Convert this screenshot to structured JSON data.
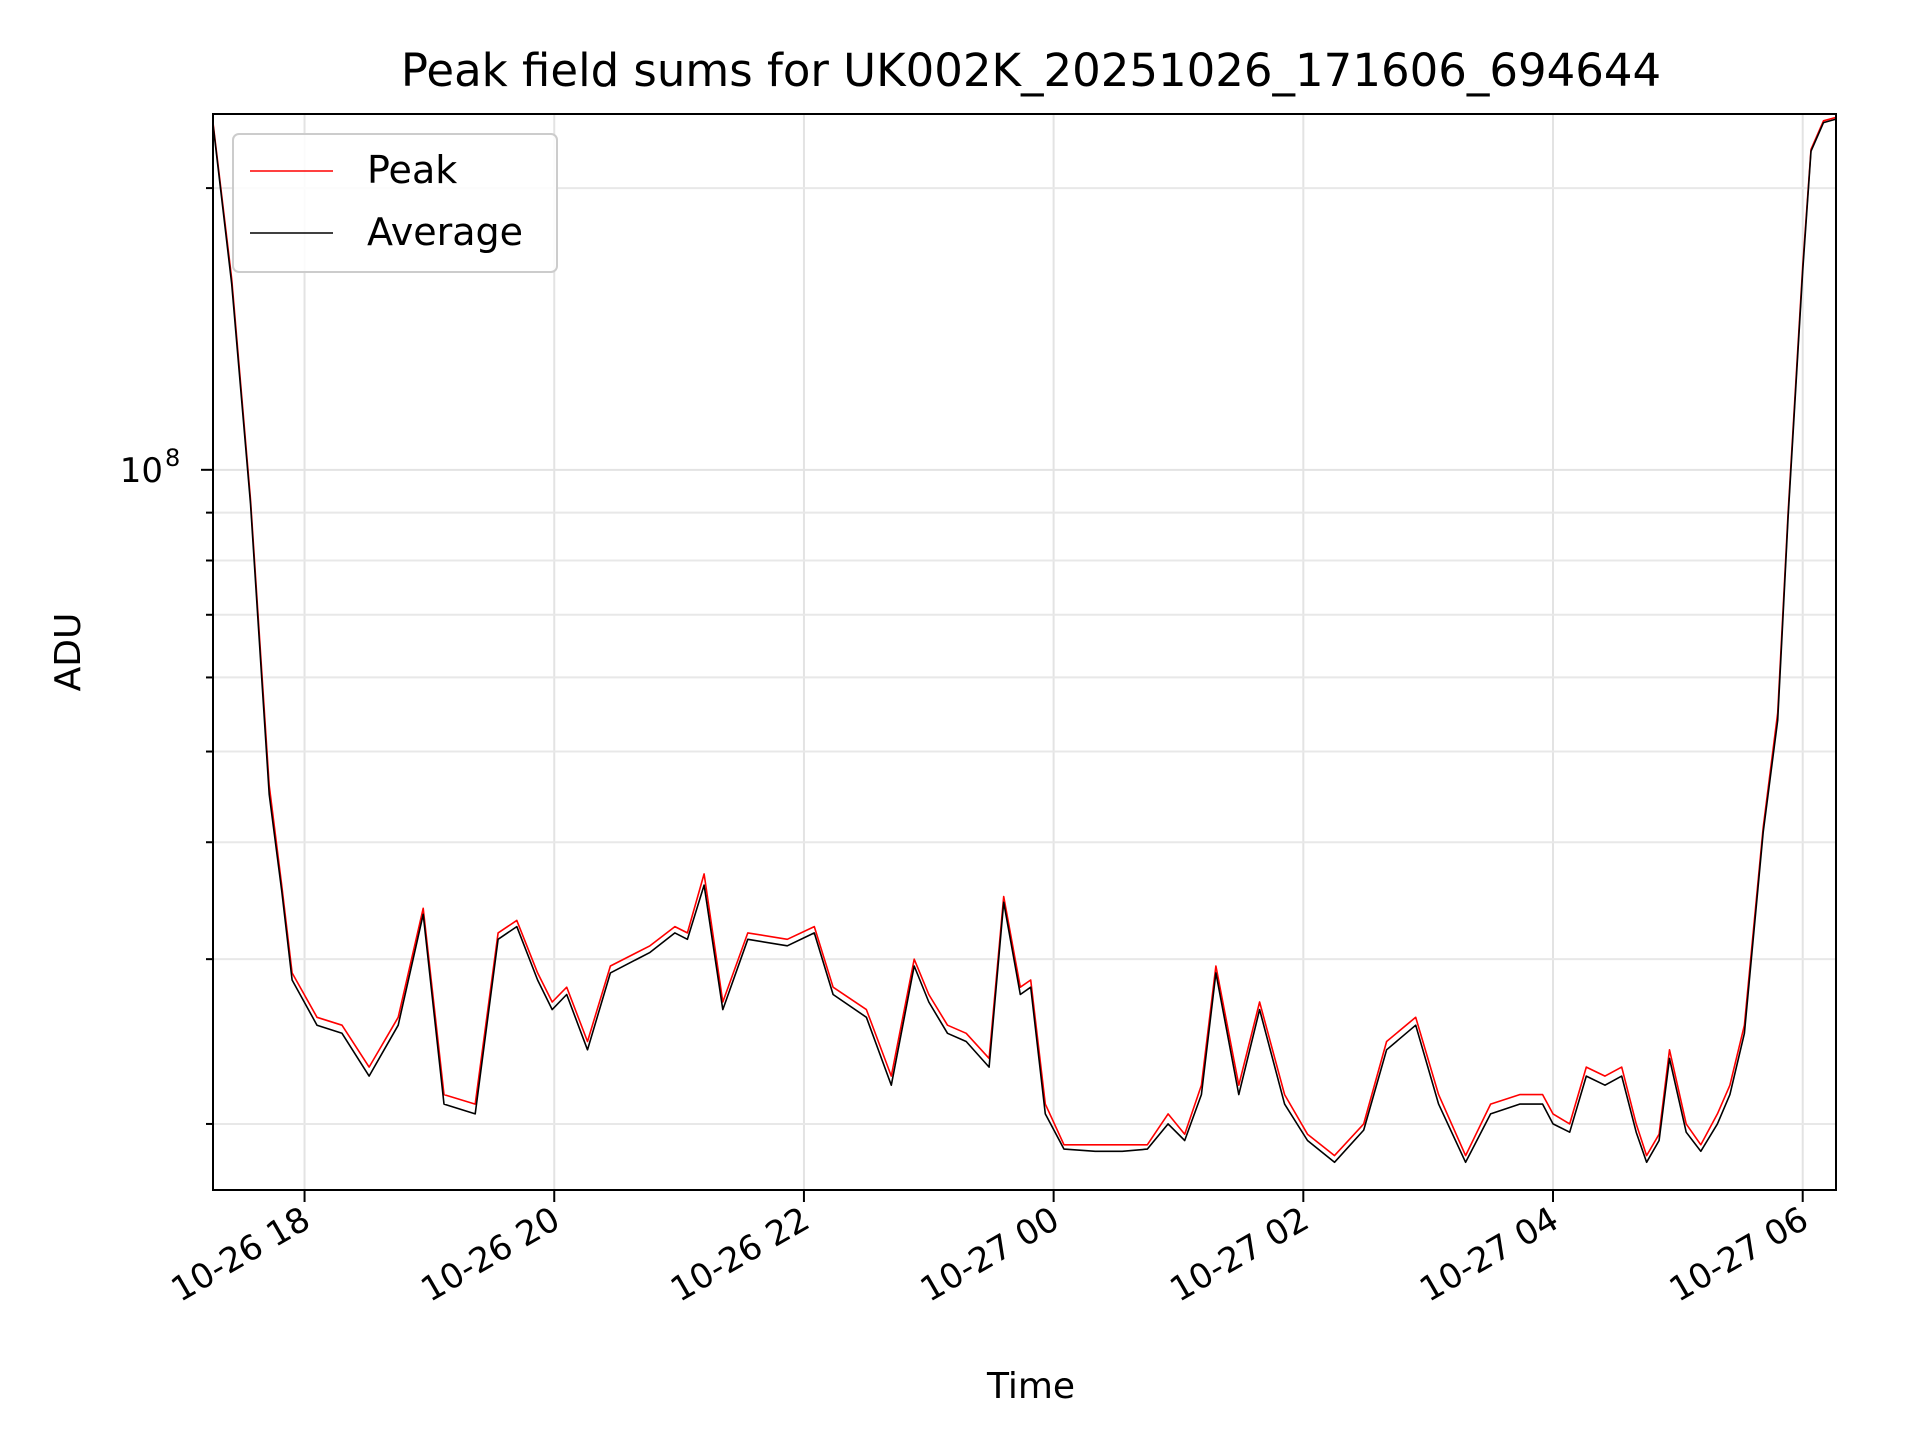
{
  "chart_data": {
    "type": "line",
    "title": "Peak field sums for UK002K_20251026_171606_694644",
    "xlabel": "Time",
    "ylabel": "ADU",
    "x_unit": "datetime",
    "x_range": [
      "2025-10-26 17:16",
      "2025-10-27 06:16"
    ],
    "y_scale": "log",
    "y_range": [
      17000000,
      240000000
    ],
    "x_ticks": [
      {
        "t": "2025-10-26 18:00",
        "label": "10-26 18"
      },
      {
        "t": "2025-10-26 20:00",
        "label": "10-26 20"
      },
      {
        "t": "2025-10-26 22:00",
        "label": "10-26 22"
      },
      {
        "t": "2025-10-27 00:00",
        "label": "10-27 00"
      },
      {
        "t": "2025-10-27 02:00",
        "label": "10-27 02"
      },
      {
        "t": "2025-10-27 04:00",
        "label": "10-27 04"
      },
      {
        "t": "2025-10-27 06:00",
        "label": "10-27 06"
      }
    ],
    "y_major_ticks": [
      {
        "value": 100000000,
        "base": "10",
        "exp": "8"
      }
    ],
    "y_minor_ticks": [
      20000000,
      30000000,
      40000000,
      50000000,
      60000000,
      70000000,
      80000000,
      90000000,
      200000000
    ],
    "grid": true,
    "legend_position": "upper-left",
    "series": [
      {
        "name": "Peak",
        "color": "#ff0000",
        "points": [
          [
            "2025-10-26 17:16",
            235000000
          ],
          [
            "2025-10-26 17:25",
            160000000
          ],
          [
            "2025-10-26 17:34",
            93000000
          ],
          [
            "2025-10-26 17:43",
            46000000
          ],
          [
            "2025-10-26 17:49",
            36000000
          ],
          [
            "2025-10-26 17:54",
            29000000
          ],
          [
            "2025-10-26 18:06",
            26000000
          ],
          [
            "2025-10-26 18:18",
            25500000
          ],
          [
            "2025-10-26 18:31",
            23000000
          ],
          [
            "2025-10-26 18:45",
            26000000
          ],
          [
            "2025-10-26 18:57",
            34000000
          ],
          [
            "2025-10-26 19:07",
            21500000
          ],
          [
            "2025-10-26 19:22",
            21000000
          ],
          [
            "2025-10-26 19:33",
            32000000
          ],
          [
            "2025-10-26 19:42",
            33000000
          ],
          [
            "2025-10-26 19:52",
            29000000
          ],
          [
            "2025-10-26 19:59",
            27000000
          ],
          [
            "2025-10-26 20:06",
            28000000
          ],
          [
            "2025-10-26 20:16",
            24500000
          ],
          [
            "2025-10-26 20:27",
            29500000
          ],
          [
            "2025-10-26 20:46",
            31000000
          ],
          [
            "2025-10-26 20:58",
            32500000
          ],
          [
            "2025-10-26 21:04",
            32000000
          ],
          [
            "2025-10-26 21:12",
            37000000
          ],
          [
            "2025-10-26 21:21",
            27000000
          ],
          [
            "2025-10-26 21:33",
            32000000
          ],
          [
            "2025-10-26 21:52",
            31500000
          ],
          [
            "2025-10-26 22:05",
            32500000
          ],
          [
            "2025-10-26 22:14",
            28000000
          ],
          [
            "2025-10-26 22:30",
            26500000
          ],
          [
            "2025-10-26 22:42",
            22500000
          ],
          [
            "2025-10-26 22:53",
            30000000
          ],
          [
            "2025-10-26 23:00",
            27500000
          ],
          [
            "2025-10-26 23:09",
            25500000
          ],
          [
            "2025-10-26 23:18",
            25000000
          ],
          [
            "2025-10-26 23:29",
            23500000
          ],
          [
            "2025-10-26 23:36",
            35000000
          ],
          [
            "2025-10-26 23:44",
            28000000
          ],
          [
            "2025-10-26 23:49",
            28500000
          ],
          [
            "2025-10-26 23:56",
            21000000
          ],
          [
            "2025-10-27 00:05",
            19000000
          ],
          [
            "2025-10-27 00:20",
            19000000
          ],
          [
            "2025-10-27 00:33",
            19000000
          ],
          [
            "2025-10-27 00:45",
            19000000
          ],
          [
            "2025-10-27 00:55",
            20500000
          ],
          [
            "2025-10-27 01:03",
            19500000
          ],
          [
            "2025-10-27 01:11",
            22000000
          ],
          [
            "2025-10-27 01:18",
            29500000
          ],
          [
            "2025-10-27 01:29",
            22000000
          ],
          [
            "2025-10-27 01:39",
            27000000
          ],
          [
            "2025-10-27 01:51",
            21500000
          ],
          [
            "2025-10-27 02:02",
            19500000
          ],
          [
            "2025-10-27 02:15",
            18500000
          ],
          [
            "2025-10-27 02:29",
            20000000
          ],
          [
            "2025-10-27 02:40",
            24500000
          ],
          [
            "2025-10-27 02:54",
            26000000
          ],
          [
            "2025-10-27 03:05",
            21500000
          ],
          [
            "2025-10-27 03:18",
            18500000
          ],
          [
            "2025-10-27 03:30",
            21000000
          ],
          [
            "2025-10-27 03:44",
            21500000
          ],
          [
            "2025-10-27 03:55",
            21500000
          ],
          [
            "2025-10-27 04:00",
            20500000
          ],
          [
            "2025-10-27 04:08",
            20000000
          ],
          [
            "2025-10-27 04:16",
            23000000
          ],
          [
            "2025-10-27 04:25",
            22500000
          ],
          [
            "2025-10-27 04:33",
            23000000
          ],
          [
            "2025-10-27 04:40",
            20000000
          ],
          [
            "2025-10-27 04:45",
            18500000
          ],
          [
            "2025-10-27 04:51",
            19500000
          ],
          [
            "2025-10-27 04:56",
            24000000
          ],
          [
            "2025-10-27 05:04",
            20000000
          ],
          [
            "2025-10-27 05:11",
            19000000
          ],
          [
            "2025-10-27 05:19",
            20500000
          ],
          [
            "2025-10-27 05:25",
            22000000
          ],
          [
            "2025-10-27 05:32",
            25500000
          ],
          [
            "2025-10-27 05:41",
            41500000
          ],
          [
            "2025-10-27 05:48",
            55000000
          ],
          [
            "2025-10-27 05:53",
            90000000
          ],
          [
            "2025-10-27 06:00",
            165000000
          ],
          [
            "2025-10-27 06:04",
            220000000
          ],
          [
            "2025-10-27 06:10",
            236000000
          ],
          [
            "2025-10-27 06:16",
            238000000
          ]
        ]
      },
      {
        "name": "Average",
        "color": "#000000",
        "points": [
          [
            "2025-10-26 17:16",
            234000000
          ],
          [
            "2025-10-26 17:25",
            158000000
          ],
          [
            "2025-10-26 17:34",
            92000000
          ],
          [
            "2025-10-26 17:43",
            45000000
          ],
          [
            "2025-10-26 17:49",
            35500000
          ],
          [
            "2025-10-26 17:54",
            28500000
          ],
          [
            "2025-10-26 18:06",
            25500000
          ],
          [
            "2025-10-26 18:18",
            25000000
          ],
          [
            "2025-10-26 18:31",
            22500000
          ],
          [
            "2025-10-26 18:45",
            25500000
          ],
          [
            "2025-10-26 18:57",
            33500000
          ],
          [
            "2025-10-26 19:07",
            21000000
          ],
          [
            "2025-10-26 19:22",
            20500000
          ],
          [
            "2025-10-26 19:33",
            31500000
          ],
          [
            "2025-10-26 19:42",
            32500000
          ],
          [
            "2025-10-26 19:52",
            28500000
          ],
          [
            "2025-10-26 19:59",
            26500000
          ],
          [
            "2025-10-26 20:06",
            27500000
          ],
          [
            "2025-10-26 20:16",
            24000000
          ],
          [
            "2025-10-26 20:27",
            29000000
          ],
          [
            "2025-10-26 20:46",
            30500000
          ],
          [
            "2025-10-26 20:58",
            32000000
          ],
          [
            "2025-10-26 21:04",
            31500000
          ],
          [
            "2025-10-26 21:12",
            36000000
          ],
          [
            "2025-10-26 21:21",
            26500000
          ],
          [
            "2025-10-26 21:33",
            31500000
          ],
          [
            "2025-10-26 21:52",
            31000000
          ],
          [
            "2025-10-26 22:05",
            32000000
          ],
          [
            "2025-10-26 22:14",
            27500000
          ],
          [
            "2025-10-26 22:30",
            26000000
          ],
          [
            "2025-10-26 22:42",
            22000000
          ],
          [
            "2025-10-26 22:53",
            29500000
          ],
          [
            "2025-10-26 23:00",
            27000000
          ],
          [
            "2025-10-26 23:09",
            25000000
          ],
          [
            "2025-10-26 23:18",
            24500000
          ],
          [
            "2025-10-26 23:29",
            23000000
          ],
          [
            "2025-10-26 23:36",
            34500000
          ],
          [
            "2025-10-26 23:44",
            27500000
          ],
          [
            "2025-10-26 23:49",
            28000000
          ],
          [
            "2025-10-26 23:56",
            20500000
          ],
          [
            "2025-10-27 00:05",
            18800000
          ],
          [
            "2025-10-27 00:20",
            18700000
          ],
          [
            "2025-10-27 00:33",
            18700000
          ],
          [
            "2025-10-27 00:45",
            18800000
          ],
          [
            "2025-10-27 00:55",
            20000000
          ],
          [
            "2025-10-27 01:03",
            19200000
          ],
          [
            "2025-10-27 01:11",
            21500000
          ],
          [
            "2025-10-27 01:18",
            29000000
          ],
          [
            "2025-10-27 01:29",
            21500000
          ],
          [
            "2025-10-27 01:39",
            26500000
          ],
          [
            "2025-10-27 01:51",
            21000000
          ],
          [
            "2025-10-27 02:02",
            19200000
          ],
          [
            "2025-10-27 02:15",
            18200000
          ],
          [
            "2025-10-27 02:29",
            19700000
          ],
          [
            "2025-10-27 02:40",
            24000000
          ],
          [
            "2025-10-27 02:54",
            25500000
          ],
          [
            "2025-10-27 03:05",
            21000000
          ],
          [
            "2025-10-27 03:18",
            18200000
          ],
          [
            "2025-10-27 03:30",
            20500000
          ],
          [
            "2025-10-27 03:44",
            21000000
          ],
          [
            "2025-10-27 03:55",
            21000000
          ],
          [
            "2025-10-27 04:00",
            20000000
          ],
          [
            "2025-10-27 04:08",
            19600000
          ],
          [
            "2025-10-27 04:16",
            22500000
          ],
          [
            "2025-10-27 04:25",
            22000000
          ],
          [
            "2025-10-27 04:33",
            22500000
          ],
          [
            "2025-10-27 04:40",
            19600000
          ],
          [
            "2025-10-27 04:45",
            18200000
          ],
          [
            "2025-10-27 04:51",
            19200000
          ],
          [
            "2025-10-27 04:56",
            23500000
          ],
          [
            "2025-10-27 05:04",
            19600000
          ],
          [
            "2025-10-27 05:11",
            18700000
          ],
          [
            "2025-10-27 05:19",
            20000000
          ],
          [
            "2025-10-27 05:25",
            21500000
          ],
          [
            "2025-10-27 05:32",
            25000000
          ],
          [
            "2025-10-27 05:41",
            41000000
          ],
          [
            "2025-10-27 05:48",
            54000000
          ],
          [
            "2025-10-27 05:53",
            89000000
          ],
          [
            "2025-10-27 06:00",
            163000000
          ],
          [
            "2025-10-27 06:04",
            219000000
          ],
          [
            "2025-10-27 06:10",
            235000000
          ],
          [
            "2025-10-27 06:16",
            237000000
          ]
        ]
      }
    ]
  }
}
